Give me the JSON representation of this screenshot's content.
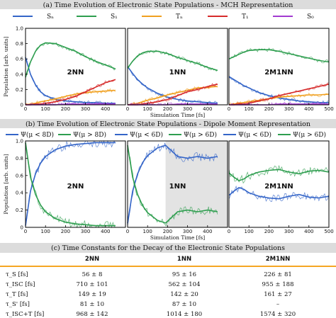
{
  "colors": {
    "Sn": "#3465c8",
    "S1": "#2e9e4f",
    "Tn": "#f0a020",
    "T1": "#d62b2b",
    "S0": "#a23ad0",
    "accent": "#f5a623",
    "header_bg": "#dcdcdc"
  },
  "section_a": {
    "title": "(a) Time Evolution of Electronic State Populations - MCH Representation"
  },
  "section_b": {
    "title": "(b) Time Evolution of Electronic State Populations - Dipole Moment Representation"
  },
  "section_c": {
    "title": "(c) Time Constants for the Decay of the Electronic State Populations"
  },
  "legend_a": [
    "Sₙ",
    "S₁",
    "Tₙ",
    "T₁",
    "S₀"
  ],
  "legend_b": [
    "Ψ(μ < 8D)",
    "Ψ(μ > 8D)",
    "Ψ(μ < 6D)",
    "Ψ(μ > 6D)",
    "Ψ(μ < 6D)",
    "Ψ(μ > 6D)"
  ],
  "table": {
    "headers": [
      "",
      "2NN",
      "1NN",
      "2M1NN"
    ],
    "rows": [
      {
        "label": "τ_S [fs]",
        "c1": "56 ± 8",
        "c2": "95 ± 16",
        "c3": "226 ± 81"
      },
      {
        "label": "τ_ISC [fs]",
        "c1": "710 ± 101",
        "c2": "562 ± 104",
        "c3": "955 ± 188"
      },
      {
        "label": "τ_T [fs]",
        "c1": "149 ± 19",
        "c2": "142 ± 20",
        "c3": "161 ± 27"
      },
      {
        "label": "τ_S' [fs]",
        "c1": "81 ± 10",
        "c2": "87 ± 10",
        "c3": "–"
      },
      {
        "label": "τ_ISC+T [fs]",
        "c1": "968 ± 142",
        "c2": "1014 ± 180",
        "c3": "1574 ± 320"
      }
    ]
  },
  "chart_data": [
    {
      "type": "line",
      "panel": "2NN",
      "xlabel": "",
      "ylabel": "Population [arb. units]",
      "xlim": [
        0,
        500
      ],
      "ylim": [
        0,
        1.0
      ],
      "x_ticks": [
        0,
        100,
        200,
        300,
        400
      ],
      "y_ticks": [
        0,
        0.2,
        0.4,
        0.6,
        0.8,
        1.0
      ],
      "x": [
        0,
        25,
        50,
        75,
        100,
        150,
        200,
        250,
        300,
        350,
        400,
        450
      ],
      "series": [
        {
          "name": "Sₙ",
          "values": [
            0.62,
            0.4,
            0.26,
            0.17,
            0.12,
            0.07,
            0.05,
            0.04,
            0.03,
            0.03,
            0.02,
            0.02
          ]
        },
        {
          "name": "S₁",
          "values": [
            0.36,
            0.56,
            0.7,
            0.78,
            0.81,
            0.8,
            0.75,
            0.7,
            0.63,
            0.57,
            0.52,
            0.47
          ]
        },
        {
          "name": "Tₙ",
          "values": [
            0.0,
            0.01,
            0.02,
            0.04,
            0.05,
            0.08,
            0.11,
            0.14,
            0.16,
            0.17,
            0.18,
            0.19
          ]
        },
        {
          "name": "T₁",
          "values": [
            0.0,
            0.0,
            0.01,
            0.01,
            0.02,
            0.04,
            0.07,
            0.11,
            0.17,
            0.23,
            0.29,
            0.33
          ]
        },
        {
          "name": "S₀",
          "values": [
            0.0,
            0.0,
            0.0,
            0.0,
            0.0,
            0.0,
            0.01,
            0.01,
            0.01,
            0.01,
            0.01,
            0.01
          ]
        }
      ]
    },
    {
      "type": "line",
      "panel": "1NN",
      "xlabel": "Simulation Time [fs]",
      "xlim": [
        0,
        500
      ],
      "ylim": [
        0,
        1.0
      ],
      "x_ticks": [
        0,
        100,
        200,
        300,
        400
      ],
      "x": [
        0,
        25,
        50,
        75,
        100,
        150,
        200,
        250,
        300,
        350,
        400,
        450
      ],
      "series": [
        {
          "name": "Sₙ",
          "values": [
            0.5,
            0.41,
            0.33,
            0.27,
            0.22,
            0.15,
            0.1,
            0.07,
            0.05,
            0.04,
            0.03,
            0.02
          ]
        },
        {
          "name": "S₁",
          "values": [
            0.48,
            0.57,
            0.64,
            0.68,
            0.7,
            0.7,
            0.67,
            0.62,
            0.58,
            0.54,
            0.49,
            0.45
          ]
        },
        {
          "name": "Tₙ",
          "values": [
            0.0,
            0.01,
            0.02,
            0.04,
            0.06,
            0.09,
            0.13,
            0.16,
            0.19,
            0.22,
            0.23,
            0.24
          ]
        },
        {
          "name": "T₁",
          "values": [
            0.0,
            0.0,
            0.0,
            0.01,
            0.02,
            0.04,
            0.07,
            0.12,
            0.17,
            0.2,
            0.24,
            0.27
          ]
        },
        {
          "name": "S₀",
          "values": [
            0.0,
            0.0,
            0.0,
            0.0,
            0.0,
            0.0,
            0.0,
            0.01,
            0.01,
            0.01,
            0.01,
            0.01
          ]
        }
      ]
    },
    {
      "type": "line",
      "panel": "2M1NN",
      "xlabel": "",
      "xlim": [
        0,
        500
      ],
      "ylim": [
        0,
        1.0
      ],
      "x_ticks": [
        0,
        100,
        200,
        300,
        400,
        500
      ],
      "x": [
        0,
        25,
        50,
        75,
        100,
        150,
        200,
        250,
        300,
        350,
        400,
        450,
        500
      ],
      "series": [
        {
          "name": "Sₙ",
          "values": [
            0.37,
            0.33,
            0.29,
            0.25,
            0.22,
            0.16,
            0.12,
            0.09,
            0.07,
            0.05,
            0.04,
            0.03,
            0.03
          ]
        },
        {
          "name": "S₁",
          "values": [
            0.6,
            0.63,
            0.66,
            0.69,
            0.71,
            0.72,
            0.72,
            0.7,
            0.67,
            0.64,
            0.61,
            0.58,
            0.56
          ]
        },
        {
          "name": "Tₙ",
          "values": [
            0.0,
            0.01,
            0.02,
            0.03,
            0.04,
            0.06,
            0.08,
            0.1,
            0.11,
            0.12,
            0.13,
            0.13,
            0.14
          ]
        },
        {
          "name": "T₁",
          "values": [
            0.0,
            0.0,
            0.01,
            0.01,
            0.02,
            0.05,
            0.08,
            0.12,
            0.15,
            0.18,
            0.21,
            0.24,
            0.27
          ]
        },
        {
          "name": "S₀",
          "values": [
            0.0,
            0.0,
            0.0,
            0.0,
            0.0,
            0.0,
            0.0,
            0.01,
            0.01,
            0.01,
            0.01,
            0.01,
            0.01
          ]
        }
      ]
    },
    {
      "type": "line",
      "panel": "2NN",
      "xlabel": "",
      "ylabel": "Population [arb. units]",
      "xlim": [
        0,
        500
      ],
      "ylim": [
        0,
        1.0
      ],
      "x_ticks": [
        0,
        100,
        200,
        300,
        400
      ],
      "y_ticks": [
        0,
        0.2,
        0.4,
        0.6,
        0.8,
        1.0
      ],
      "x": [
        0,
        25,
        50,
        75,
        100,
        150,
        200,
        250,
        300,
        350,
        400,
        450
      ],
      "series": [
        {
          "name": "Ψ(μ < 8D)",
          "values": [
            0.02,
            0.42,
            0.62,
            0.74,
            0.82,
            0.9,
            0.94,
            0.96,
            0.97,
            0.98,
            0.98,
            0.98
          ]
        },
        {
          "name": "Ψ(μ > 8D)",
          "values": [
            0.98,
            0.58,
            0.38,
            0.26,
            0.18,
            0.1,
            0.06,
            0.04,
            0.03,
            0.02,
            0.02,
            0.02
          ]
        }
      ]
    },
    {
      "type": "line",
      "panel": "1NN",
      "xlabel": "Simulation Time [fs]",
      "xlim": [
        0,
        500
      ],
      "ylim": [
        0,
        1.0
      ],
      "x_ticks": [
        0,
        100,
        200,
        300,
        400
      ],
      "shaded_region_x": [
        190,
        500
      ],
      "x": [
        0,
        25,
        50,
        75,
        100,
        150,
        190,
        250,
        300,
        350,
        400,
        450
      ],
      "series": [
        {
          "name": "Ψ(μ < 6D)",
          "values": [
            0.05,
            0.42,
            0.62,
            0.75,
            0.83,
            0.92,
            0.95,
            0.82,
            0.8,
            0.82,
            0.8,
            0.82
          ]
        },
        {
          "name": "Ψ(μ > 6D)",
          "values": [
            0.95,
            0.58,
            0.38,
            0.25,
            0.17,
            0.08,
            0.05,
            0.18,
            0.2,
            0.18,
            0.2,
            0.18
          ]
        }
      ]
    },
    {
      "type": "line",
      "panel": "2M1NN",
      "xlabel": "",
      "xlim": [
        0,
        500
      ],
      "ylim": [
        0,
        1.0
      ],
      "x_ticks": [
        0,
        100,
        200,
        300,
        400,
        500
      ],
      "x": [
        0,
        25,
        50,
        75,
        100,
        150,
        200,
        250,
        300,
        350,
        400,
        450,
        500
      ],
      "series": [
        {
          "name": "Ψ(μ < 6D)",
          "values": [
            0.37,
            0.42,
            0.46,
            0.44,
            0.4,
            0.36,
            0.34,
            0.33,
            0.36,
            0.38,
            0.35,
            0.34,
            0.36
          ]
        },
        {
          "name": "Ψ(μ > 6D)",
          "values": [
            0.63,
            0.58,
            0.54,
            0.56,
            0.6,
            0.64,
            0.66,
            0.67,
            0.64,
            0.62,
            0.65,
            0.66,
            0.64
          ]
        }
      ]
    }
  ]
}
